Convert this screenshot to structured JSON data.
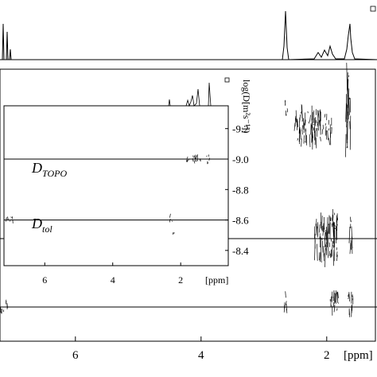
{
  "chart_data": [
    {
      "type": "line",
      "xlabel": "[ppm]",
      "x_tick_labels": [
        "6",
        "4",
        "2"
      ],
      "x_ticks": [
        6,
        4,
        2
      ],
      "xlim": [
        7.2,
        1.2
      ],
      "inset": {
        "type": "line",
        "ylabel": "log(D[m²s⁻¹])",
        "y_tick_labels": [
          "-9.2",
          "-9.0",
          "-8.8",
          "-8.6",
          "-8.4"
        ],
        "y_ticks": [
          -9.2,
          -9.0,
          -8.8,
          -8.6,
          -8.4
        ],
        "ylim": [
          -9.35,
          -8.3
        ],
        "x_tick_labels": [
          "6",
          "4",
          "2"
        ],
        "x_ticks": [
          6,
          4,
          2
        ],
        "xlabel": "[ppm]",
        "xlim": [
          7.2,
          0.6
        ],
        "series": [
          {
            "name_main": "D",
            "name_sub": "TOPO",
            "logD": -9.0
          },
          {
            "name_main": "D",
            "name_sub": "tol",
            "logD": -8.6
          }
        ],
        "lines_logD": [
          -9.0,
          -8.6
        ]
      }
    }
  ],
  "colors": {
    "ink": "#000000",
    "background": "#ffffff"
  }
}
